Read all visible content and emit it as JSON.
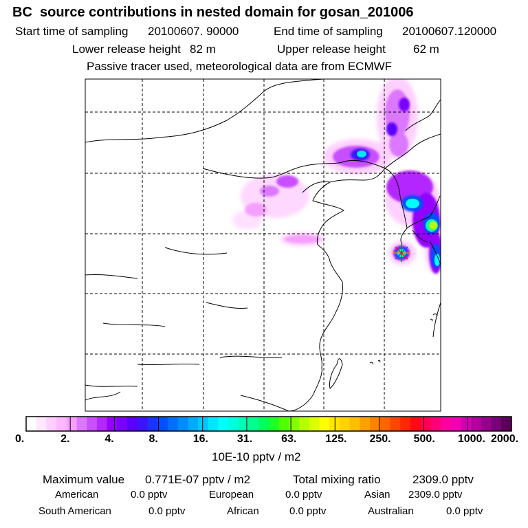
{
  "title": "BC  source contributions in nested domain for gosan_201006",
  "sampling": {
    "start_label": "Start time of sampling",
    "start_value": "20100607. 90000",
    "end_label": "End time of sampling",
    "end_value": "20100607.120000"
  },
  "release": {
    "lower_label": "Lower release height",
    "lower_value": "82 m",
    "upper_label": "Upper release height",
    "upper_value": "62 m"
  },
  "tracer_note": "Passive tracer used, meteorological data are from ECMWF",
  "colorbar": {
    "colors": [
      "#ffffff",
      "#ffe8ff",
      "#ffd0ff",
      "#ffb8ff",
      "#f5a0ff",
      "#dc78ff",
      "#c850ff",
      "#b428ff",
      "#9600ff",
      "#7800ff",
      "#5a00ff",
      "#3c14ff",
      "#1e32ff",
      "#0050ff",
      "#006eff",
      "#008cff",
      "#00aaff",
      "#00c8ff",
      "#00e6ff",
      "#00ffff",
      "#00ffdc",
      "#00ffb4",
      "#00ff8c",
      "#00ff5a",
      "#1eff28",
      "#50ff00",
      "#82ff00",
      "#b4ff00",
      "#dcff00",
      "#ffff00",
      "#ffe600",
      "#ffd200",
      "#ffbe00",
      "#ffa000",
      "#ff8200",
      "#ff6400",
      "#ff4600",
      "#ff2800",
      "#ff0a14",
      "#ff0050",
      "#ff0078",
      "#ff00a0",
      "#f000b4",
      "#d200b4",
      "#b400a0",
      "#96008c",
      "#780078",
      "#5a005a"
    ],
    "tick_labels": [
      "0.",
      "2.",
      "4.",
      "8.",
      "16.",
      "31.",
      "63.",
      "125.",
      "250.",
      "500.",
      "1000.",
      "2000."
    ],
    "unit": "10E-10 pptv / m2"
  },
  "summary": {
    "max_label": "Maximum value",
    "max_value": "0.771E-07 pptv / m2",
    "total_label": "Total mixing ratio",
    "total_value": "2309.0 pptv",
    "regions": [
      {
        "name": "American",
        "value": "0.0 pptv"
      },
      {
        "name": "European",
        "value": "0.0 pptv"
      },
      {
        "name": "Asian",
        "value": "2309.0 pptv"
      },
      {
        "name": "South American",
        "value": "0.0 pptv"
      },
      {
        "name": "African",
        "value": "0.0 pptv"
      },
      {
        "name": "Australian",
        "value": "0.0 pptv"
      }
    ]
  }
}
